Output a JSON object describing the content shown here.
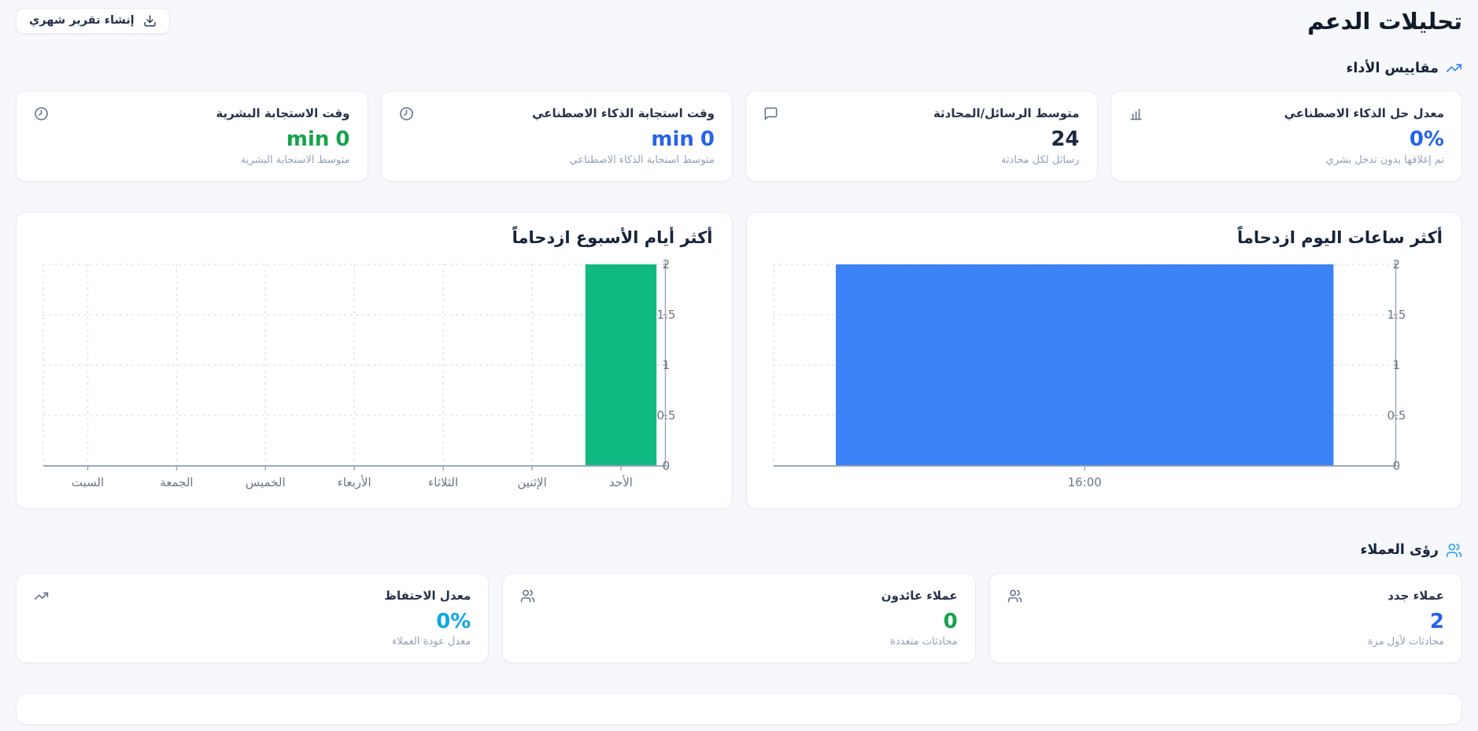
{
  "page": {
    "title": "تحليلات الدعم",
    "report_button": "إنشاء تقرير شهري"
  },
  "sections": {
    "performance": {
      "title": "مقاييس الأداء",
      "icon": "trending-up-icon"
    },
    "customers": {
      "title": "رؤى العملاء",
      "icon": "users-icon"
    }
  },
  "metric_cards": [
    {
      "title": "معدل حل الذكاء الاصطناعي",
      "icon": "bar-chart-icon",
      "value": "0%",
      "unit": "",
      "value_color": "#2563eb",
      "subtitle": "تم إغلاقها بدون تدخل بشري"
    },
    {
      "title": "متوسط الرسائل/المحادثة",
      "icon": "message-icon",
      "value": "24",
      "unit": "",
      "value_color": "#1b2940",
      "subtitle": "رسائل لكل محادثة"
    },
    {
      "title": "وقت استجابة الذكاء الاصطناعي",
      "icon": "clock-icon",
      "value": "0",
      "unit": "min",
      "value_color": "#2563eb",
      "subtitle": "متوسط استجابة الذكاء الاصطناعي"
    },
    {
      "title": "وقت الاستجابة البشرية",
      "icon": "clock-icon",
      "value": "0",
      "unit": "min",
      "value_color": "#16a34a",
      "subtitle": "متوسط الاستجابة البشرية"
    }
  ],
  "insight_cards": [
    {
      "title": "عملاء جدد",
      "icon": "users-icon",
      "value": "2",
      "unit": "",
      "value_color": "#2563eb",
      "subtitle": "محادثات لأول مرة"
    },
    {
      "title": "عملاء عائدون",
      "icon": "users-icon",
      "value": "0",
      "unit": "",
      "value_color": "#16a34a",
      "subtitle": "محادثات متعددة"
    },
    {
      "title": "معدل الاحتفاظ",
      "icon": "trending-up-dark-icon",
      "value": "0%",
      "unit": "",
      "value_color": "#0ea5e9",
      "subtitle": "معدل عودة العملاء"
    }
  ],
  "chart_data": [
    {
      "type": "bar",
      "title": "أكثر ساعات اليوم ازدحاماً",
      "categories": [
        "16:00"
      ],
      "values": [
        2
      ],
      "bar_color": "#3b82f6",
      "ylim": [
        0,
        2
      ],
      "yticks": [
        0,
        0.5,
        1,
        1.5,
        2
      ],
      "y_axis_side": "right",
      "grid": "dotted"
    },
    {
      "type": "bar",
      "title": "أكثر أيام الأسبوع ازدحاماً",
      "categories": [
        "السبت",
        "الجمعة",
        "الخميس",
        "الأربعاء",
        "الثلاثاء",
        "الإثنين",
        "الأحد"
      ],
      "values": [
        0,
        0,
        0,
        0,
        0,
        0,
        2
      ],
      "bar_color": "#10b981",
      "ylim": [
        0,
        2
      ],
      "yticks": [
        0,
        0.5,
        1,
        1.5,
        2
      ],
      "y_axis_side": "right",
      "grid": "dotted"
    }
  ],
  "colors": {
    "section_icon_blue": "#3b82f6",
    "customers_icon_blue": "#38a8f4",
    "accent_blue": "#2563eb",
    "accent_green": "#16a34a",
    "accent_sky": "#0ea5e9",
    "bar_blue": "#3b82f6",
    "bar_green": "#10b981"
  }
}
